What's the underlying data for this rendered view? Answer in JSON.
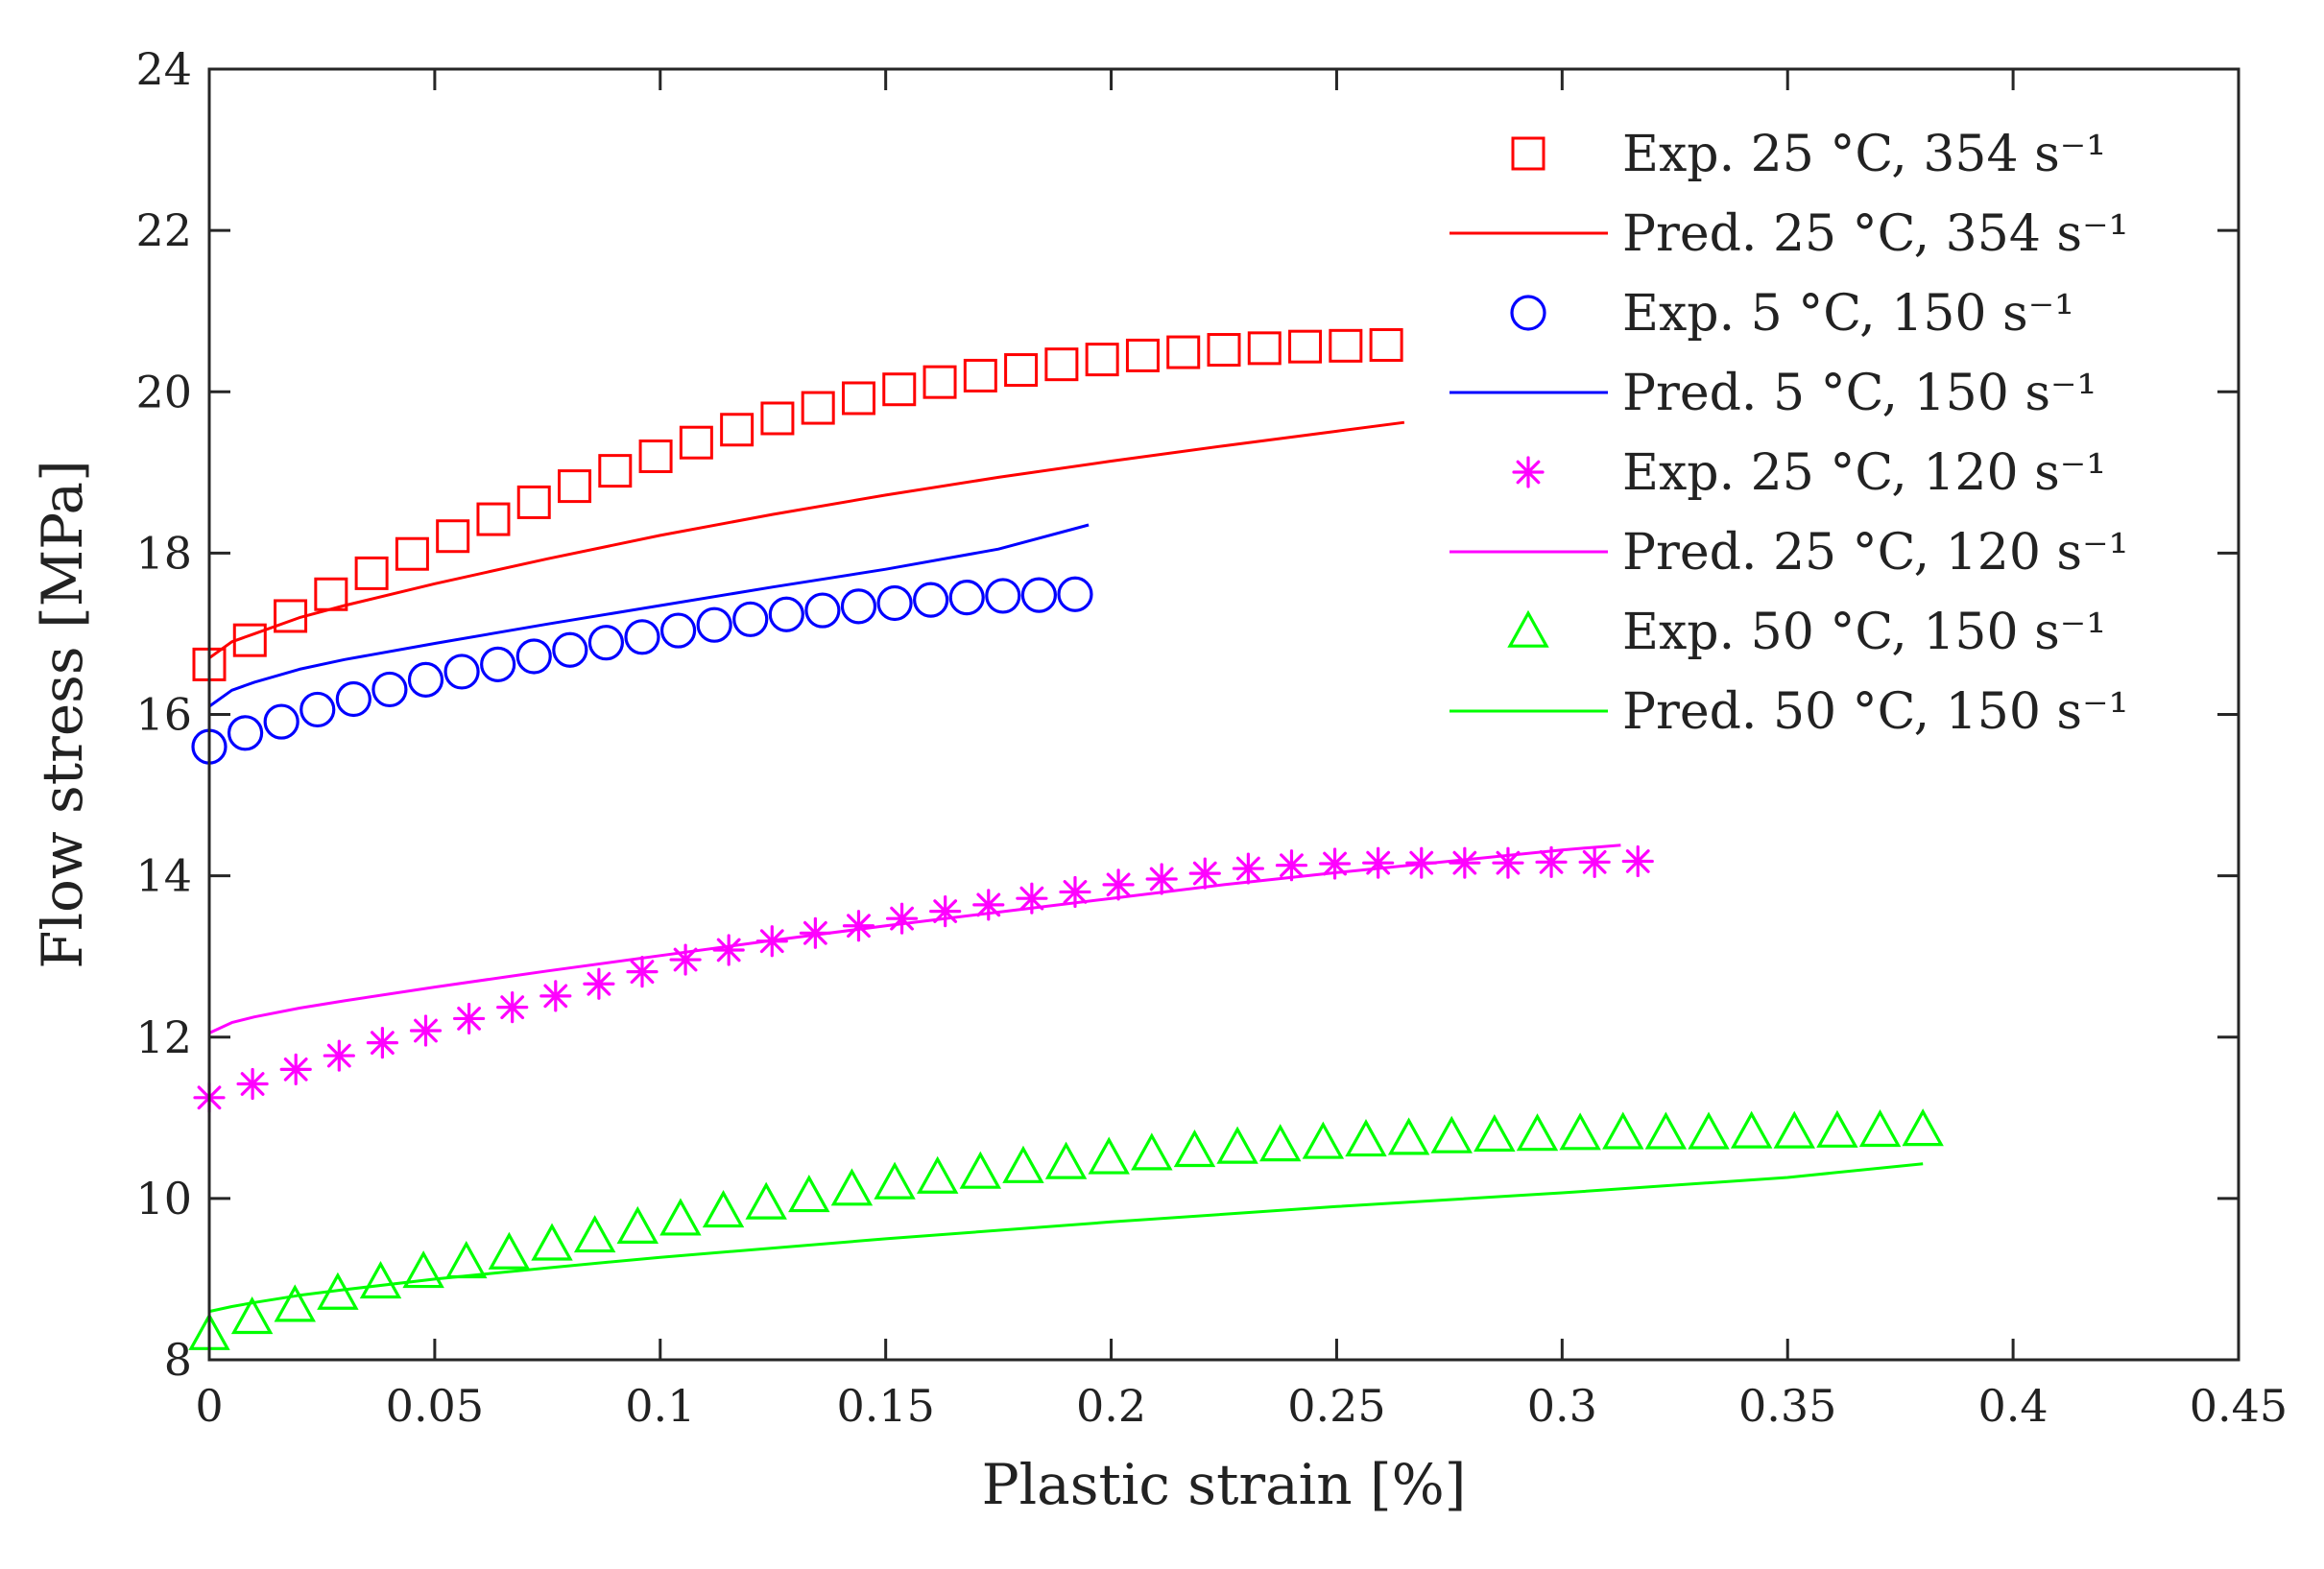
{
  "chart_data": {
    "type": "scatter",
    "title": "",
    "xlabel": "Plastic strain [%]",
    "ylabel": "Flow stress [MPa]",
    "xlim": [
      0,
      0.45
    ],
    "ylim": [
      8,
      24
    ],
    "xticks": [
      0,
      0.05,
      0.1,
      0.15,
      0.2,
      0.25,
      0.3,
      0.35,
      0.4,
      0.45
    ],
    "xtick_labels": [
      "0",
      "0.05",
      "0.1",
      "0.15",
      "0.2",
      "0.25",
      "0.3",
      "0.35",
      "0.4",
      "0.45"
    ],
    "yticks": [
      8,
      10,
      12,
      14,
      16,
      18,
      20,
      22,
      24
    ],
    "ytick_labels": [
      "8",
      "10",
      "12",
      "14",
      "16",
      "18",
      "20",
      "22",
      "24"
    ],
    "grid": false,
    "legend_position": "top-right",
    "series": [
      {
        "name": "Exp. 25 °C, 354 s⁻¹",
        "style": "marker",
        "marker": "square",
        "color": "#ff0000",
        "x": [
          0,
          0.009,
          0.018,
          0.027,
          0.036,
          0.045,
          0.054,
          0.063,
          0.072,
          0.081,
          0.09,
          0.099,
          0.108,
          0.117,
          0.126,
          0.135,
          0.144,
          0.153,
          0.162,
          0.171,
          0.18,
          0.189,
          0.198,
          0.207,
          0.216,
          0.225,
          0.234,
          0.243,
          0.252,
          0.261
        ],
        "y": [
          16.62,
          16.92,
          17.22,
          17.49,
          17.75,
          17.99,
          18.21,
          18.42,
          18.63,
          18.83,
          19.02,
          19.2,
          19.37,
          19.53,
          19.67,
          19.8,
          19.92,
          20.03,
          20.12,
          20.2,
          20.27,
          20.34,
          20.4,
          20.45,
          20.49,
          20.52,
          20.54,
          20.56,
          20.57,
          20.58
        ]
      },
      {
        "name": "Pred. 25 °C, 354 s⁻¹",
        "style": "line",
        "color": "#ff0000",
        "x": [
          0,
          0.005,
          0.01,
          0.02,
          0.03,
          0.05,
          0.075,
          0.1,
          0.125,
          0.15,
          0.175,
          0.2,
          0.225,
          0.25,
          0.265
        ],
        "y": [
          16.7,
          16.9,
          17.0,
          17.2,
          17.35,
          17.62,
          17.93,
          18.22,
          18.48,
          18.72,
          18.94,
          19.14,
          19.33,
          19.51,
          19.62
        ]
      },
      {
        "name": "Exp. 5 °C, 150 s⁻¹",
        "style": "marker",
        "marker": "circle",
        "color": "#0000ff",
        "x": [
          0,
          0.008,
          0.016,
          0.024,
          0.032,
          0.04,
          0.048,
          0.056,
          0.064,
          0.072,
          0.08,
          0.088,
          0.096,
          0.104,
          0.112,
          0.12,
          0.128,
          0.136,
          0.144,
          0.152,
          0.16,
          0.168,
          0.176,
          0.184,
          0.192
        ],
        "y": [
          15.6,
          15.77,
          15.91,
          16.06,
          16.19,
          16.31,
          16.43,
          16.53,
          16.62,
          16.72,
          16.8,
          16.89,
          16.96,
          17.04,
          17.11,
          17.18,
          17.24,
          17.29,
          17.34,
          17.38,
          17.42,
          17.45,
          17.47,
          17.48,
          17.49
        ]
      },
      {
        "name": "Pred. 5 °C, 150 s⁻¹",
        "style": "line",
        "color": "#0000ff",
        "x": [
          0,
          0.005,
          0.01,
          0.02,
          0.03,
          0.05,
          0.075,
          0.1,
          0.125,
          0.15,
          0.175,
          0.195
        ],
        "y": [
          16.1,
          16.3,
          16.4,
          16.56,
          16.68,
          16.88,
          17.12,
          17.35,
          17.58,
          17.8,
          18.05,
          18.35
        ]
      },
      {
        "name": "Exp. 25 °C, 120 s⁻¹",
        "style": "marker",
        "marker": "asterisk",
        "color": "#ff00ff",
        "x": [
          0,
          0.0096,
          0.0192,
          0.0288,
          0.0384,
          0.048,
          0.0576,
          0.0672,
          0.0768,
          0.0864,
          0.096,
          0.1056,
          0.1152,
          0.1248,
          0.1344,
          0.144,
          0.1536,
          0.1632,
          0.1728,
          0.1824,
          0.192,
          0.2016,
          0.2112,
          0.2208,
          0.2304,
          0.24,
          0.2496,
          0.2592,
          0.2688,
          0.2784,
          0.288,
          0.2976,
          0.3072,
          0.3168
        ],
        "y": [
          11.25,
          11.42,
          11.6,
          11.77,
          11.93,
          12.08,
          12.23,
          12.37,
          12.51,
          12.66,
          12.81,
          12.96,
          13.08,
          13.19,
          13.29,
          13.38,
          13.47,
          13.56,
          13.64,
          13.72,
          13.8,
          13.89,
          13.96,
          14.03,
          14.09,
          14.13,
          14.15,
          14.16,
          14.16,
          14.16,
          14.16,
          14.17,
          14.17,
          14.18
        ]
      },
      {
        "name": "Pred. 25 °C, 120 s⁻¹",
        "style": "line",
        "color": "#ff00ff",
        "x": [
          0,
          0.005,
          0.01,
          0.02,
          0.03,
          0.05,
          0.075,
          0.1,
          0.125,
          0.15,
          0.175,
          0.2,
          0.225,
          0.25,
          0.275,
          0.3,
          0.313
        ],
        "y": [
          12.05,
          12.18,
          12.25,
          12.36,
          12.45,
          12.62,
          12.82,
          13.01,
          13.2,
          13.38,
          13.55,
          13.72,
          13.89,
          14.04,
          14.18,
          14.32,
          14.38
        ]
      },
      {
        "name": "Exp. 50 °C, 150 s⁻¹",
        "style": "marker",
        "marker": "triangle",
        "color": "#00ff00",
        "x": [
          0,
          0.0095,
          0.019,
          0.0285,
          0.038,
          0.0475,
          0.057,
          0.0665,
          0.076,
          0.0855,
          0.095,
          0.1045,
          0.114,
          0.1235,
          0.133,
          0.1425,
          0.152,
          0.1615,
          0.171,
          0.1805,
          0.19,
          0.1995,
          0.209,
          0.2185,
          0.228,
          0.2375,
          0.247,
          0.2565,
          0.266,
          0.2755,
          0.285,
          0.2945,
          0.304,
          0.3135,
          0.323,
          0.3325,
          0.342,
          0.3515,
          0.361,
          0.3705,
          0.38
        ],
        "y": [
          8.32,
          8.52,
          8.67,
          8.82,
          8.96,
          9.09,
          9.21,
          9.32,
          9.43,
          9.53,
          9.64,
          9.74,
          9.84,
          9.94,
          10.03,
          10.11,
          10.19,
          10.26,
          10.32,
          10.39,
          10.44,
          10.5,
          10.55,
          10.59,
          10.63,
          10.66,
          10.69,
          10.72,
          10.74,
          10.76,
          10.78,
          10.79,
          10.8,
          10.81,
          10.81,
          10.81,
          10.82,
          10.82,
          10.83,
          10.84,
          10.85
        ]
      },
      {
        "name": "Pred. 50 °C, 150 s⁻¹",
        "style": "line",
        "color": "#00ff00",
        "x": [
          0,
          0.005,
          0.01,
          0.02,
          0.03,
          0.05,
          0.075,
          0.1,
          0.15,
          0.2,
          0.25,
          0.3,
          0.35,
          0.38
        ],
        "y": [
          8.6,
          8.66,
          8.71,
          8.8,
          8.87,
          9.0,
          9.14,
          9.27,
          9.5,
          9.71,
          9.9,
          10.07,
          10.26,
          10.43
        ]
      }
    ]
  }
}
